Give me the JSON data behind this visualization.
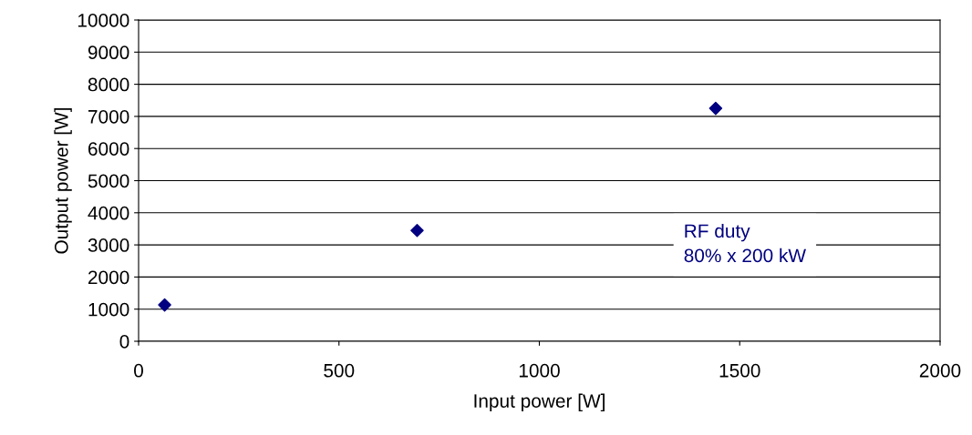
{
  "chart_data": {
    "type": "scatter",
    "xlabel": "Input power [W]",
    "ylabel": "Output power [W]",
    "x": [
      65,
      695,
      1440
    ],
    "series": [
      {
        "color": "#000080",
        "values": [
          1130,
          3450,
          7250
        ]
      }
    ],
    "marker": "diamond",
    "grid": "y",
    "legend": false,
    "xlim": [
      0,
      2000
    ],
    "xticks": [
      0,
      500,
      1000,
      1500,
      2000
    ],
    "ylim": [
      0,
      10000
    ],
    "yticks": [
      0,
      1000,
      2000,
      3000,
      4000,
      5000,
      6000,
      7000,
      8000,
      9000,
      10000
    ],
    "annotations": [
      "RF duty\n80% x 200 kW"
    ]
  }
}
